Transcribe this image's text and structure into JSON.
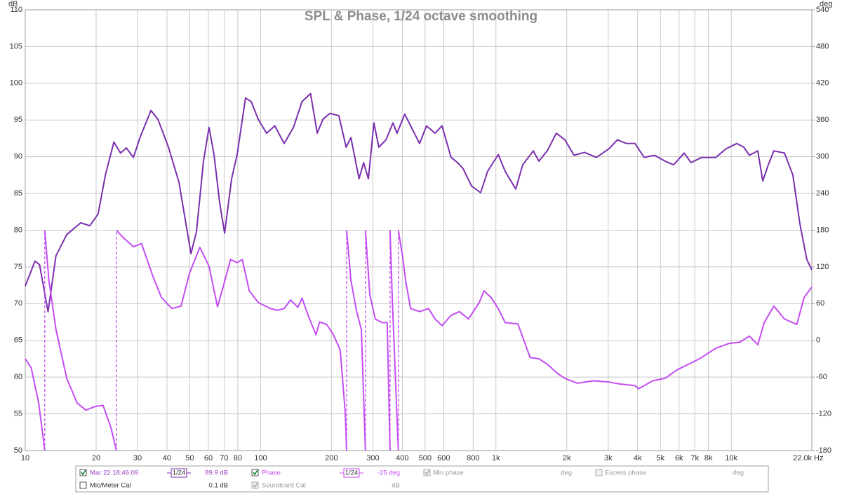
{
  "chart_data": {
    "type": "line",
    "title": "SPL & Phase, 1/24 octave smoothing",
    "ylabel": "dB",
    "y2label": "deg",
    "xlabel": "Hz",
    "xscale": "log",
    "grid": true,
    "xlim": [
      10,
      22000
    ],
    "xticks": [
      10,
      20,
      30,
      40,
      50,
      60,
      70,
      80,
      100,
      200,
      300,
      400,
      500,
      600,
      800,
      {
        "value": 1000,
        "label": "1k"
      },
      {
        "value": 2000,
        "label": "2k"
      },
      {
        "value": 3000,
        "label": "3k"
      },
      {
        "value": 4000,
        "label": "4k"
      },
      {
        "value": 5000,
        "label": "5k"
      },
      {
        "value": 6000,
        "label": "6k"
      },
      {
        "value": 7000,
        "label": "7k"
      },
      {
        "value": 8000,
        "label": "8k"
      },
      {
        "value": 10000,
        "label": "10k"
      },
      {
        "value": 22000,
        "label": "22.0k"
      }
    ],
    "ylim": [
      50,
      110
    ],
    "yticks": [
      50,
      55,
      60,
      65,
      70,
      75,
      80,
      85,
      90,
      95,
      100,
      105,
      110
    ],
    "y2lim": [
      -180,
      540
    ],
    "y2ticks": [
      -180,
      -120,
      -60,
      0,
      60,
      120,
      180,
      240,
      300,
      360,
      420,
      480,
      540
    ],
    "series": [
      {
        "name": "Mar 22 18:46:09",
        "color": "#7b2fae",
        "axis": "y",
        "x": [
          10,
          11,
          11.5,
          12.5,
          13.5,
          15,
          17.2,
          18.8,
          20.4,
          21.9,
          23.8,
          25.4,
          26.9,
          28.8,
          30.8,
          34.2,
          36.6,
          40.6,
          45,
          48.2,
          50.6,
          53.4,
          57.2,
          60.4,
          63.4,
          67,
          70.3,
          75.3,
          79.5,
          86.3,
          91.2,
          97.7,
          106,
          115,
          126,
          138,
          150,
          163,
          174,
          184,
          197,
          215,
          231,
          242,
          262,
          274,
          287,
          303,
          318,
          341,
          365,
          380,
          410,
          434,
          474,
          507,
          551,
          590,
          645,
          687,
          725,
          788,
          861,
          922,
          1023,
          1095,
          1214,
          1300,
          1442,
          1522,
          1652,
          1806,
          1964,
          2148,
          2379,
          2673,
          3029,
          3283,
          3590,
          3899,
          4266,
          4721,
          5236,
          5689,
          6310,
          6745,
          7482,
          8590,
          9527,
          10550,
          11300,
          11940,
          12970,
          13610,
          14360,
          15170,
          16830,
          18280,
          19590,
          20950,
          22000
        ],
        "values": [
          72.4,
          75.8,
          75.3,
          68.9,
          76.5,
          79.4,
          81.0,
          80.6,
          82.2,
          87.5,
          92.0,
          90.5,
          91.2,
          89.9,
          92.7,
          96.3,
          95.1,
          91.3,
          86.5,
          80.8,
          76.8,
          79.8,
          89.4,
          94.0,
          90.3,
          83.7,
          79.6,
          87.0,
          90.3,
          98.0,
          97.5,
          95.1,
          93.2,
          94.2,
          91.8,
          94.0,
          97.5,
          98.6,
          93.2,
          95.1,
          95.9,
          95.6,
          91.3,
          92.6,
          87.0,
          89.2,
          87.0,
          94.6,
          91.3,
          92.3,
          94.6,
          93.2,
          95.8,
          94.2,
          91.8,
          94.2,
          93.2,
          94.2,
          89.9,
          89.2,
          88.4,
          86.0,
          85.1,
          88.0,
          90.3,
          88.0,
          85.6,
          88.9,
          90.8,
          89.4,
          90.8,
          93.2,
          92.3,
          90.2,
          90.6,
          89.9,
          91.1,
          92.3,
          91.8,
          91.8,
          89.9,
          90.2,
          89.4,
          88.9,
          90.5,
          89.2,
          89.9,
          89.9,
          91.1,
          91.8,
          91.3,
          90.2,
          90.8,
          86.7,
          88.9,
          90.8,
          90.5,
          87.5,
          80.8,
          76.0,
          74.6
        ]
      },
      {
        "name": "Phase",
        "color": "#c44cf2",
        "axis": "y2",
        "x": [
          10,
          10.6,
          11.4,
          12.1,
          null,
          12.1,
          12.6,
          13.5,
          15,
          16.6,
          18.1,
          19.8,
          21.4,
          23.1,
          24.4,
          null,
          24.4,
          25.9,
          28.8,
          31.2,
          34.9,
          37.9,
          42,
          45.9,
          49.9,
          55.2,
          60.4,
          65.6,
          69.3,
          74.5,
          79.5,
          83.6,
          89.5,
          97.7,
          110,
          118,
          126,
          134,
          144,
          150,
          160,
          172,
          178,
          191,
          204,
          218,
          229,
          232,
          null,
          232,
          242,
          256,
          268,
          279,
          null,
          279,
          291,
          307,
          328,
          345,
          355,
          null,
          355,
          363,
          385,
          null,
          385,
          403,
          413,
          434,
          474,
          517,
          551,
          590,
          645,
          700,
          764,
          850,
          890,
          954,
          1023,
          1095,
          1240,
          1397,
          1522,
          1652,
          1826,
          1964,
          2217,
          2600,
          3029,
          3330,
          3899,
          4045,
          4640,
          5236,
          5890,
          6745,
          7482,
          8590,
          9800,
          10870,
          11940,
          12970,
          13800,
          15170,
          16830,
          19000,
          20400,
          22000
        ],
        "values": [
          -30,
          -45,
          -102,
          -180,
          null,
          180,
          98,
          18,
          -62,
          -102,
          -114,
          -108,
          -106,
          -142,
          -180,
          null,
          180,
          169,
          153,
          158,
          104,
          70,
          52,
          56,
          110,
          152,
          121,
          55,
          87,
          132,
          127,
          132,
          81,
          62,
          52,
          49,
          52,
          66,
          54,
          69,
          39,
          9,
          30,
          26,
          9,
          -16,
          -119,
          -180,
          null,
          180,
          98,
          47,
          18,
          -180,
          null,
          180,
          75,
          35,
          29,
          29,
          -180,
          null,
          180,
          64,
          -180,
          null,
          180,
          132,
          98,
          52,
          47,
          52,
          35,
          24,
          41,
          47,
          35,
          62,
          81,
          70,
          52,
          29,
          27,
          -28,
          -30,
          -39,
          -54,
          -62,
          -70,
          -66,
          -68,
          -71,
          -74,
          -79,
          -66,
          -62,
          -48,
          -37,
          -28,
          -13,
          -5,
          -3,
          7,
          -7,
          29,
          56,
          35,
          26,
          70,
          87
        ]
      }
    ]
  },
  "controls": {
    "spl_smoothing": "1/24",
    "spl_level": "89.9 dB",
    "phase_smoothing": "1/24",
    "phase_offset": "-25 deg",
    "min_phase": "Min phase",
    "min_phase_unit": "deg",
    "excess_phase": "Excess phase",
    "excess_phase_unit": "deg",
    "mic_cal": "Mic/Meter Cal",
    "mic_cal_level": "0.1 dB",
    "soundcard_cal": "Soundcard Cal",
    "soundcard_cal_unit": "dB"
  }
}
